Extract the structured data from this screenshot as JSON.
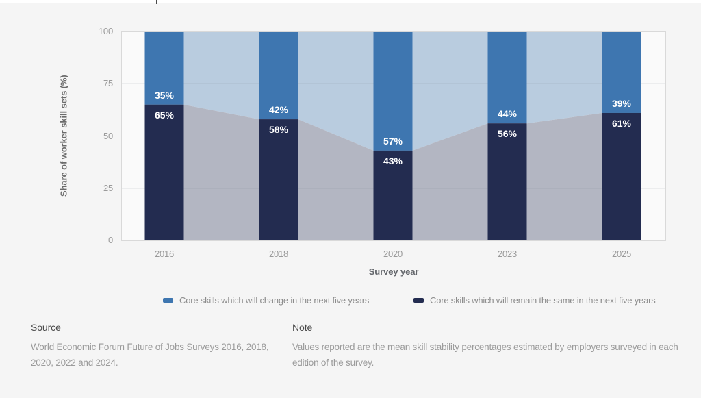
{
  "chart_data": {
    "type": "bar",
    "stacked": true,
    "categories": [
      "2016",
      "2018",
      "2020",
      "2023",
      "2025"
    ],
    "series": [
      {
        "name": "Core skills which will change in the next five years",
        "values": [
          35,
          42,
          57,
          44,
          39
        ],
        "color": "#3E76B0",
        "area_color": "#B9CCDF"
      },
      {
        "name": "Core skills which will remain the same in the next five years",
        "values": [
          65,
          58,
          43,
          56,
          61
        ],
        "color": "#232C50",
        "area_color": "#B3B6C2"
      }
    ],
    "value_label_suffix": "%",
    "value_label_color": "#ffffff",
    "xlabel": "Survey year",
    "ylabel": "Share of worker skill sets (%)",
    "yticks": [
      0,
      25,
      50,
      75,
      100
    ],
    "ylim": [
      0,
      100
    ],
    "grid": true,
    "legend_position": "bottom"
  },
  "legend": [
    {
      "label": "Core skills which will change in the next five years",
      "color": "#3E76B0"
    },
    {
      "label": "Core skills which will remain the same in the next five years",
      "color": "#232C50"
    }
  ],
  "footer": {
    "source_heading": "Source",
    "source_text": "World Economic Forum Future of Jobs Surveys 2016, 2018, 2020, 2022 and 2024.",
    "note_heading": "Note",
    "note_text": "Values reported are the mean skill stability percentages estimated by employers surveyed in each edition of the survey."
  },
  "colors": {
    "page_bg": "#f5f5f5",
    "plot_bg": "#fafafa",
    "plot_border": "#d9d9d9",
    "axis_tick_text": "#9b9b9b",
    "axis_title_text": "#6b6b6b",
    "legend_text": "#8c8c8c"
  }
}
